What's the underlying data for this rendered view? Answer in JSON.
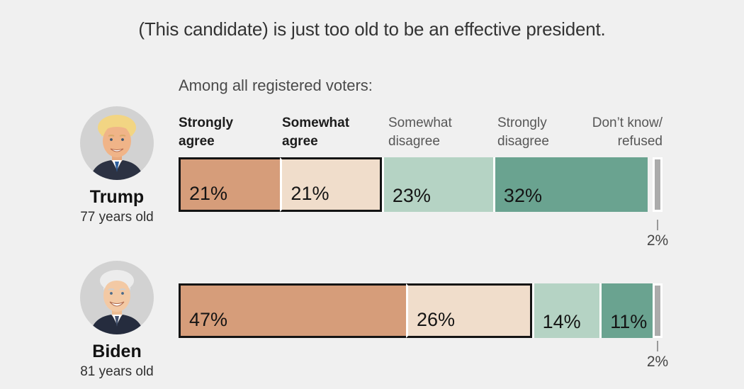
{
  "title": "(This candidate) is just too old to be an effective president.",
  "subtitle": "Among all registered voters:",
  "headers": [
    {
      "line1": "Strongly",
      "line2": "agree"
    },
    {
      "line1": "Somewhat",
      "line2": "agree"
    },
    {
      "line1": "Somewhat",
      "line2": "disagree"
    },
    {
      "line1": "Strongly",
      "line2": "disagree"
    },
    {
      "line1": "Don’t know/",
      "line2": "refused"
    }
  ],
  "chart_data": {
    "type": "bar",
    "variant": "horizontal-stacked",
    "categories": [
      "Strongly agree",
      "Somewhat agree",
      "Somewhat disagree",
      "Strongly disagree",
      "Don’t know/refused"
    ],
    "series": [
      {
        "name": "Trump",
        "age": "77 years old",
        "values": [
          21,
          21,
          23,
          32,
          2
        ],
        "labels": [
          "21%",
          "21%",
          "23%",
          "32%",
          "2%"
        ]
      },
      {
        "name": "Biden",
        "age": "81 years old",
        "values": [
          47,
          26,
          14,
          11,
          2
        ],
        "labels": [
          "47%",
          "26%",
          "14%",
          "11%",
          "2%"
        ]
      }
    ],
    "colors": {
      "strongly_agree": "#d69d7a",
      "somewhat_agree": "#f0ddcb",
      "somewhat_disagree": "#b5d3c4",
      "strongly_disagree": "#6aa390",
      "dont_know_refused": "#ababab",
      "agree_outline": "#141414",
      "background": "#f0f0f0"
    },
    "xlim": [
      0,
      100
    ]
  }
}
